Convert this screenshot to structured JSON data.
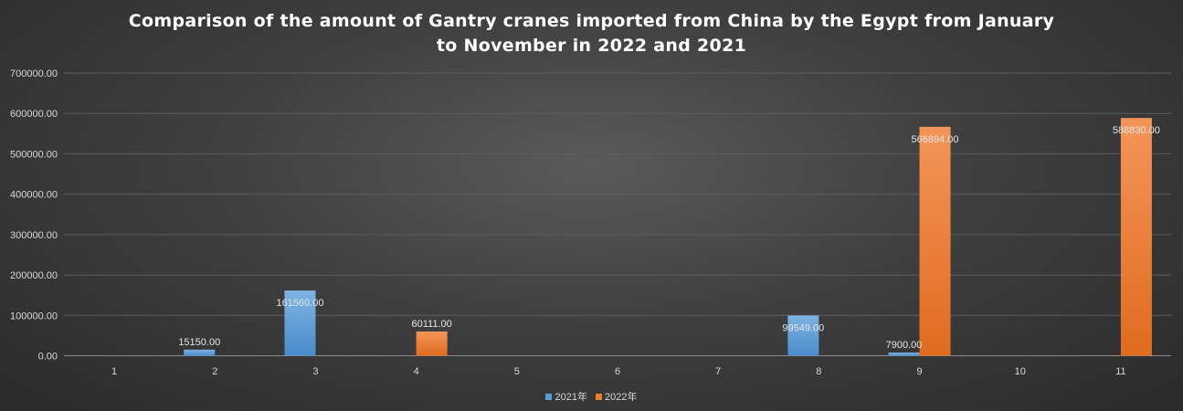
{
  "chart_data": {
    "type": "bar",
    "title": "Comparison of the amount of Gantry cranes imported from China by the Egypt from January to November in 2022 and 2021",
    "categories": [
      "1",
      "2",
      "3",
      "4",
      "5",
      "6",
      "7",
      "8",
      "9",
      "10",
      "11"
    ],
    "series": [
      {
        "name": "2021年",
        "color": "#5b9bd5",
        "values": [
          null,
          15150.0,
          161560.0,
          null,
          null,
          null,
          null,
          99549.0,
          7900.0,
          null,
          null
        ],
        "labels": [
          "",
          "15150.00",
          "161560.00",
          "",
          "",
          "",
          "",
          "99549.00",
          "7900.00",
          "",
          ""
        ]
      },
      {
        "name": "2022年",
        "color": "#ed7d31",
        "values": [
          null,
          null,
          null,
          60111.0,
          null,
          null,
          null,
          null,
          566894.0,
          null,
          588830.0
        ],
        "labels": [
          "",
          "",
          "",
          "60111.00",
          "",
          "",
          "",
          "",
          "566894.00",
          "",
          "588830.00"
        ]
      }
    ],
    "ylim": [
      0,
      700000
    ],
    "yticks": [
      "0.00",
      "100000.00",
      "200000.00",
      "300000.00",
      "400000.00",
      "500000.00",
      "600000.00",
      "700000.00"
    ],
    "xlabel": "",
    "ylabel": "",
    "grid": true,
    "legend_position": "bottom"
  }
}
